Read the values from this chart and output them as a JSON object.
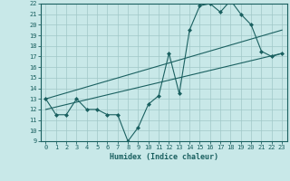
{
  "xlabel": "Humidex (Indice chaleur)",
  "ylabel": "",
  "bg_color": "#c8e8e8",
  "line_color": "#1a6060",
  "xmin": 0,
  "xmax": 23,
  "ymin": 9,
  "ymax": 22,
  "line1_x": [
    0,
    1,
    2,
    3,
    4,
    5,
    6,
    7,
    8,
    9,
    10,
    11,
    12,
    13,
    14,
    15,
    16,
    17,
    18,
    19,
    20,
    21,
    22,
    23
  ],
  "line1_y": [
    13.0,
    11.5,
    11.5,
    13.0,
    12.0,
    12.0,
    11.5,
    11.5,
    9.0,
    10.3,
    12.5,
    13.3,
    17.3,
    13.5,
    19.5,
    21.8,
    22.0,
    21.2,
    22.3,
    21.0,
    20.0,
    17.5,
    17.0,
    17.3
  ],
  "line2_x": [
    0,
    23
  ],
  "line2_y": [
    12.0,
    17.3
  ],
  "line3_x": [
    0,
    23
  ],
  "line3_y": [
    13.0,
    19.5
  ]
}
